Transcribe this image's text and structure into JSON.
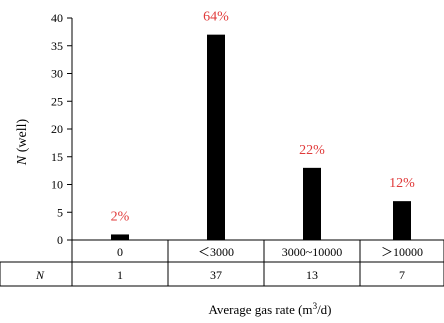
{
  "chart_data": {
    "type": "bar",
    "categories": [
      "0",
      "＜3000",
      "3000~10000",
      "＞10000"
    ],
    "values": [
      1,
      37,
      13,
      7
    ],
    "percent_labels": [
      "2%",
      "64%",
      "22%",
      "12%"
    ],
    "table_row_label": "N",
    "table_values": [
      "1",
      "37",
      "13",
      "7"
    ],
    "ylabel": "N (well)",
    "xlabel": "Average gas rate (m³/d)",
    "ylim": [
      0,
      40
    ],
    "yticks": [
      0,
      5,
      10,
      15,
      20,
      25,
      30,
      35,
      40
    ],
    "grid": false,
    "legend": "none",
    "colors": {
      "bar": "#000000",
      "percent": "#e03a3a"
    }
  }
}
